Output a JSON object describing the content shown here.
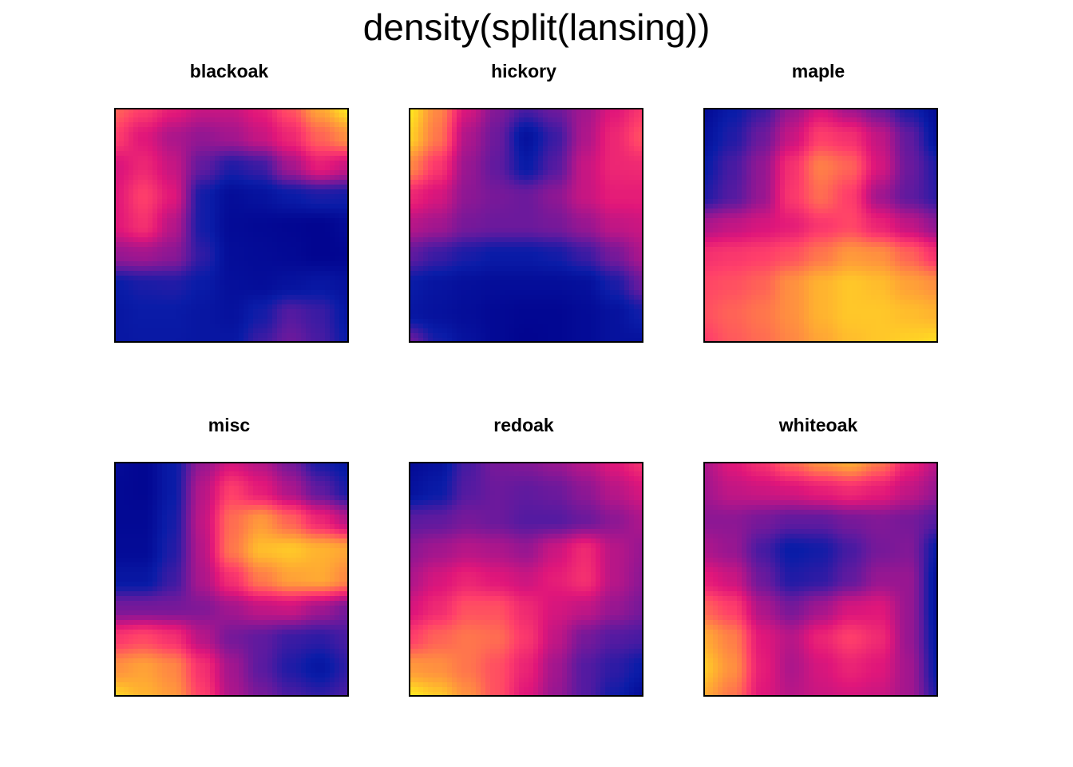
{
  "title": "density(split(lansing))",
  "chart_data": {
    "type": "heatmap",
    "title": "density(split(lansing))",
    "colormap": [
      "#00008B",
      "#0A1CA8",
      "#5B1AA0",
      "#A0168F",
      "#E0167A",
      "#FF3F6A",
      "#FF7A4A",
      "#FFB030",
      "#FFEF1C"
    ],
    "grid_rows": 9,
    "grid_cols": 9,
    "panels": [
      {
        "label": "blackoak",
        "values": [
          [
            0.7,
            0.62,
            0.52,
            0.45,
            0.45,
            0.52,
            0.66,
            0.85,
            0.98
          ],
          [
            0.62,
            0.5,
            0.4,
            0.35,
            0.38,
            0.45,
            0.55,
            0.7,
            0.8
          ],
          [
            0.48,
            0.55,
            0.45,
            0.26,
            0.16,
            0.2,
            0.38,
            0.52,
            0.45
          ],
          [
            0.5,
            0.62,
            0.5,
            0.14,
            0.06,
            0.08,
            0.12,
            0.15,
            0.14
          ],
          [
            0.5,
            0.58,
            0.42,
            0.14,
            0.05,
            0.04,
            0.03,
            0.02,
            0.05
          ],
          [
            0.36,
            0.38,
            0.34,
            0.18,
            0.06,
            0.05,
            0.04,
            0.02,
            0.03
          ],
          [
            0.12,
            0.15,
            0.16,
            0.12,
            0.07,
            0.06,
            0.08,
            0.1,
            0.08
          ],
          [
            0.1,
            0.12,
            0.12,
            0.1,
            0.08,
            0.14,
            0.24,
            0.2,
            0.1
          ],
          [
            0.1,
            0.11,
            0.11,
            0.1,
            0.1,
            0.2,
            0.28,
            0.22,
            0.12
          ]
        ]
      },
      {
        "label": "hickory",
        "values": [
          [
            0.98,
            0.78,
            0.48,
            0.32,
            0.22,
            0.28,
            0.38,
            0.5,
            0.6
          ],
          [
            0.94,
            0.74,
            0.4,
            0.28,
            0.08,
            0.2,
            0.4,
            0.55,
            0.66
          ],
          [
            0.78,
            0.6,
            0.36,
            0.26,
            0.12,
            0.24,
            0.45,
            0.55,
            0.56
          ],
          [
            0.55,
            0.48,
            0.34,
            0.3,
            0.28,
            0.34,
            0.45,
            0.52,
            0.52
          ],
          [
            0.42,
            0.38,
            0.3,
            0.28,
            0.28,
            0.3,
            0.36,
            0.44,
            0.46
          ],
          [
            0.26,
            0.2,
            0.15,
            0.12,
            0.12,
            0.14,
            0.2,
            0.3,
            0.4
          ],
          [
            0.12,
            0.09,
            0.07,
            0.06,
            0.06,
            0.06,
            0.07,
            0.15,
            0.28
          ],
          [
            0.1,
            0.08,
            0.06,
            0.04,
            0.03,
            0.03,
            0.05,
            0.08,
            0.14
          ],
          [
            0.28,
            0.14,
            0.08,
            0.04,
            0.02,
            0.03,
            0.05,
            0.08,
            0.08
          ]
        ]
      },
      {
        "label": "maple",
        "values": [
          [
            0.05,
            0.12,
            0.2,
            0.36,
            0.48,
            0.38,
            0.28,
            0.15,
            0.06
          ],
          [
            0.08,
            0.16,
            0.28,
            0.45,
            0.62,
            0.58,
            0.44,
            0.26,
            0.08
          ],
          [
            0.12,
            0.22,
            0.35,
            0.58,
            0.76,
            0.7,
            0.48,
            0.28,
            0.16
          ],
          [
            0.16,
            0.24,
            0.36,
            0.6,
            0.72,
            0.62,
            0.38,
            0.26,
            0.18
          ],
          [
            0.4,
            0.44,
            0.48,
            0.52,
            0.6,
            0.64,
            0.54,
            0.44,
            0.34
          ],
          [
            0.58,
            0.6,
            0.62,
            0.66,
            0.74,
            0.82,
            0.8,
            0.7,
            0.58
          ],
          [
            0.64,
            0.66,
            0.7,
            0.8,
            0.88,
            0.92,
            0.9,
            0.84,
            0.8
          ],
          [
            0.66,
            0.7,
            0.74,
            0.8,
            0.88,
            0.92,
            0.92,
            0.9,
            0.88
          ],
          [
            0.62,
            0.68,
            0.72,
            0.78,
            0.85,
            0.9,
            0.92,
            0.94,
            0.96
          ]
        ]
      },
      {
        "label": "misc",
        "values": [
          [
            0.05,
            0.03,
            0.12,
            0.36,
            0.48,
            0.42,
            0.3,
            0.15,
            0.1
          ],
          [
            0.04,
            0.03,
            0.12,
            0.42,
            0.62,
            0.52,
            0.4,
            0.26,
            0.15
          ],
          [
            0.04,
            0.04,
            0.14,
            0.44,
            0.72,
            0.82,
            0.7,
            0.55,
            0.42
          ],
          [
            0.05,
            0.05,
            0.16,
            0.42,
            0.74,
            0.9,
            0.92,
            0.88,
            0.85
          ],
          [
            0.1,
            0.1,
            0.2,
            0.4,
            0.58,
            0.75,
            0.84,
            0.86,
            0.78
          ],
          [
            0.3,
            0.3,
            0.3,
            0.32,
            0.38,
            0.44,
            0.46,
            0.38,
            0.3
          ],
          [
            0.6,
            0.64,
            0.58,
            0.42,
            0.3,
            0.26,
            0.2,
            0.18,
            0.22
          ],
          [
            0.8,
            0.84,
            0.78,
            0.58,
            0.38,
            0.25,
            0.16,
            0.1,
            0.18
          ],
          [
            0.94,
            0.88,
            0.82,
            0.62,
            0.4,
            0.3,
            0.22,
            0.18,
            0.22
          ]
        ]
      },
      {
        "label": "redoak",
        "values": [
          [
            0.05,
            0.08,
            0.22,
            0.3,
            0.32,
            0.36,
            0.42,
            0.5,
            0.58
          ],
          [
            0.08,
            0.12,
            0.24,
            0.28,
            0.26,
            0.28,
            0.34,
            0.42,
            0.48
          ],
          [
            0.25,
            0.26,
            0.3,
            0.28,
            0.24,
            0.24,
            0.28,
            0.34,
            0.4
          ],
          [
            0.34,
            0.38,
            0.42,
            0.4,
            0.36,
            0.46,
            0.56,
            0.42,
            0.36
          ],
          [
            0.4,
            0.48,
            0.54,
            0.5,
            0.46,
            0.52,
            0.58,
            0.42,
            0.34
          ],
          [
            0.48,
            0.56,
            0.66,
            0.66,
            0.56,
            0.48,
            0.44,
            0.36,
            0.3
          ],
          [
            0.62,
            0.7,
            0.74,
            0.72,
            0.6,
            0.44,
            0.3,
            0.24,
            0.22
          ],
          [
            0.82,
            0.8,
            0.74,
            0.66,
            0.54,
            0.38,
            0.24,
            0.18,
            0.12
          ],
          [
            0.98,
            0.92,
            0.8,
            0.66,
            0.5,
            0.36,
            0.24,
            0.14,
            0.06
          ]
        ]
      },
      {
        "label": "whiteoak",
        "values": [
          [
            0.4,
            0.5,
            0.58,
            0.7,
            0.8,
            0.86,
            0.74,
            0.54,
            0.42
          ],
          [
            0.38,
            0.44,
            0.46,
            0.48,
            0.52,
            0.56,
            0.52,
            0.44,
            0.36
          ],
          [
            0.34,
            0.34,
            0.3,
            0.26,
            0.26,
            0.3,
            0.32,
            0.3,
            0.24
          ],
          [
            0.4,
            0.36,
            0.22,
            0.12,
            0.14,
            0.22,
            0.3,
            0.32,
            0.12
          ],
          [
            0.52,
            0.46,
            0.28,
            0.16,
            0.18,
            0.26,
            0.36,
            0.36,
            0.08
          ],
          [
            0.7,
            0.62,
            0.4,
            0.3,
            0.38,
            0.48,
            0.5,
            0.36,
            0.08
          ],
          [
            0.86,
            0.76,
            0.5,
            0.42,
            0.54,
            0.62,
            0.56,
            0.36,
            0.1
          ],
          [
            0.92,
            0.8,
            0.52,
            0.4,
            0.48,
            0.54,
            0.5,
            0.38,
            0.12
          ],
          [
            0.86,
            0.74,
            0.5,
            0.42,
            0.46,
            0.48,
            0.46,
            0.38,
            0.16
          ]
        ]
      }
    ]
  }
}
